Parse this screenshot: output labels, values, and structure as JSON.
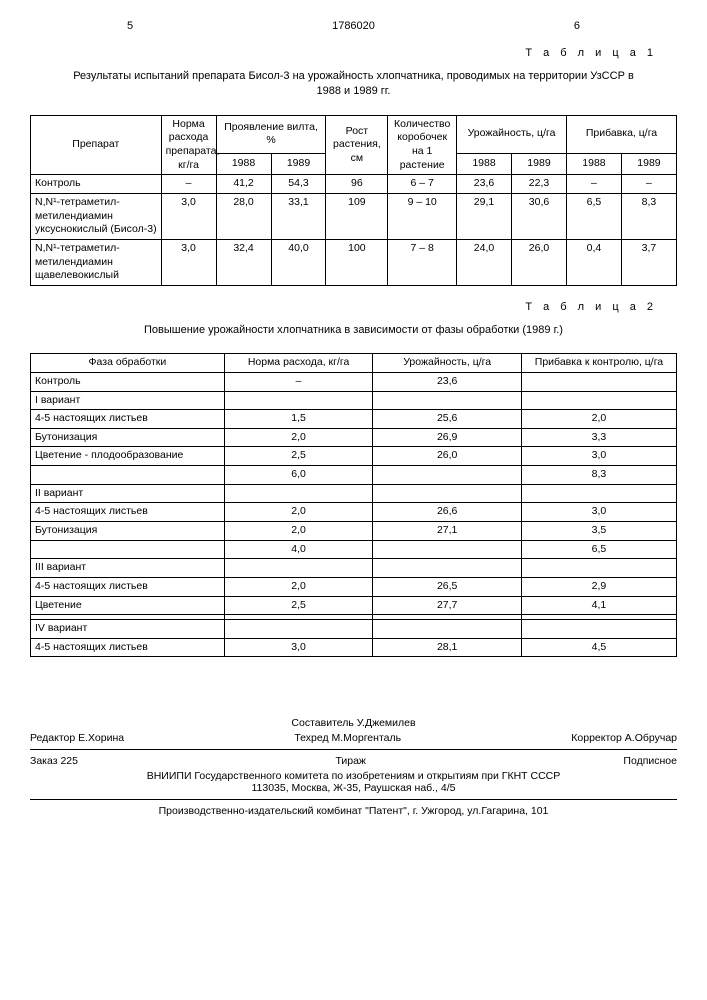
{
  "pageLeft": "5",
  "docNumber": "1786020",
  "pageRight": "6",
  "table1": {
    "label": "Т а б л и ц а 1",
    "caption": "Результаты испытаний препарата Бисол-3 на урожайность хлопчатника, проводимых на территории УзССР в 1988 и 1989 гг.",
    "h_prep": "Препарат",
    "h_norm": "Норма расхода препарата, кг/га",
    "h_vilt": "Проявление вилта, %",
    "h_rost": "Рост растения, см",
    "h_box": "Количество коробочек на 1 растение",
    "h_yield": "Урожайность, ц/га",
    "h_add": "Прибавка, ц/га",
    "y88": "1988",
    "y89": "1989",
    "rows": [
      {
        "name": "Контроль",
        "norm": "–",
        "v88": "41,2",
        "v89": "54,3",
        "rost": "96",
        "box": "6 – 7",
        "u88": "23,6",
        "u89": "22,3",
        "p88": "–",
        "p89": "–"
      },
      {
        "name": "N,N¹-тетраметил-метилендиамин уксуснокислый (Бисол-3)",
        "norm": "3,0",
        "v88": "28,0",
        "v89": "33,1",
        "rost": "109",
        "box": "9 – 10",
        "u88": "29,1",
        "u89": "30,6",
        "p88": "6,5",
        "p89": "8,3"
      },
      {
        "name": "N,N¹-тетраметил-метилендиамин щавелевокислый",
        "norm": "3,0",
        "v88": "32,4",
        "v89": "40,0",
        "rost": "100",
        "box": "7 – 8",
        "u88": "24,0",
        "u89": "26,0",
        "p88": "0,4",
        "p89": "3,7"
      }
    ]
  },
  "table2": {
    "label": "Т а б л и ц а 2",
    "caption": "Повышение урожайности хлопчатника в зависимости от фазы обработки (1989 г.)",
    "h1": "Фаза обработки",
    "h2": "Норма расхода, кг/га",
    "h3": "Урожайность, ц/га",
    "h4": "Прибавка к контролю, ц/га",
    "rows": [
      {
        "a": "Контроль",
        "b": "–",
        "c": "23,6",
        "d": ""
      },
      {
        "a": "I вариант",
        "b": "",
        "c": "",
        "d": ""
      },
      {
        "a": "4-5 настоящих листьев",
        "b": "1,5",
        "c": "25,6",
        "d": "2,0"
      },
      {
        "a": "Бутонизация",
        "b": "2,0",
        "c": "26,9",
        "d": "3,3"
      },
      {
        "a": "Цветение - плодообразование",
        "b": "2,5",
        "c": "26,0",
        "d": "3,0"
      },
      {
        "a": "",
        "b": "6,0",
        "c": "",
        "d": "8,3"
      },
      {
        "a": "II вариант",
        "b": "",
        "c": "",
        "d": ""
      },
      {
        "a": "4-5 настоящих листьев",
        "b": "2,0",
        "c": "26,6",
        "d": "3,0"
      },
      {
        "a": "Бутонизация",
        "b": "2,0",
        "c": "27,1",
        "d": "3,5"
      },
      {
        "a": "",
        "b": "4,0",
        "c": "",
        "d": "6,5"
      },
      {
        "a": "III вариант",
        "b": "",
        "c": "",
        "d": ""
      },
      {
        "a": "4-5 настоящих листьев",
        "b": "2,0",
        "c": "26,5",
        "d": "2,9"
      },
      {
        "a": "Цветение",
        "b": "2,5",
        "c": "27,7",
        "d": "4,1"
      },
      {
        "a": "",
        "b": "",
        "c": "",
        "d": ""
      },
      {
        "a": "IV вариант",
        "b": "",
        "c": "",
        "d": ""
      },
      {
        "a": "4-5 настоящих листьев",
        "b": "3,0",
        "c": "28,1",
        "d": "4,5"
      }
    ]
  },
  "footer": {
    "compiler": "Составитель  У.Джемилев",
    "editor": "Редактор Е.Хорина",
    "tech": "Техред М.Моргенталь",
    "corrector": "Корректор А.Обручар",
    "order": "Заказ 225",
    "tirazh": "Тираж",
    "sub": "Подписное",
    "org": "ВНИИПИ Государственного комитета по изобретениям и открытиям при ГКНТ СССР",
    "addr": "113035, Москва, Ж-35, Раушская наб., 4/5",
    "press": "Производственно-издательский комбинат \"Патент\", г. Ужгород, ул.Гагарина, 101"
  }
}
